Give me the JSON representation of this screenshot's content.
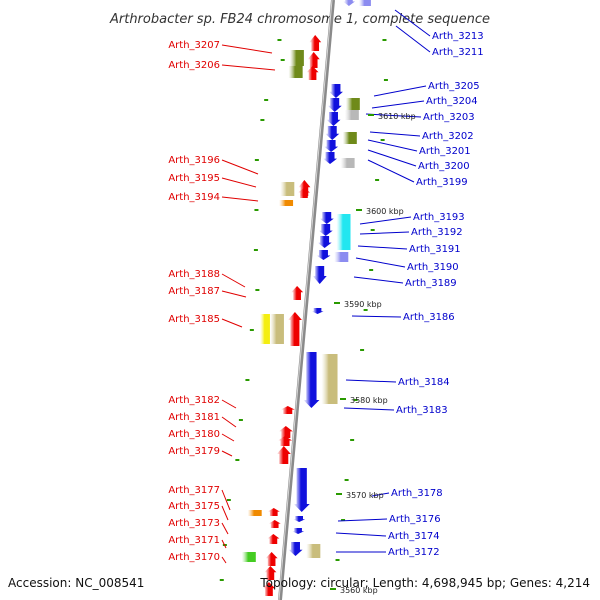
{
  "title": "Arthrobacter sp. FB24 chromosome 1, complete sequence",
  "footer": {
    "accession": "Accession: NC_008541",
    "topology": "Topology: circular; Length: 4,698,945 bp; Genes: 4,214"
  },
  "colors": {
    "backbone": "#8a8a8a",
    "left_label": "#e00000",
    "right_label": "#0000cc",
    "tick": "#2a9a00",
    "gene_red": "#ee0000",
    "gene_blue": "#1111dd",
    "gene_olive": "#6f8a1a",
    "gene_gray": "#b8b8b8",
    "gene_cyan": "#22e6f0",
    "gene_khaki": "#c9bd7c",
    "gene_yellow": "#f4ee10",
    "gene_orange": "#f08a00",
    "gene_lilac": "#8c8cf0",
    "gene_green": "#44cc22"
  },
  "scale_labels": [
    {
      "text": "3610 kbp"
    },
    {
      "text": "3600 kbp"
    },
    {
      "text": "3590 kbp"
    },
    {
      "text": "3580 kbp"
    },
    {
      "text": "3570 kbp"
    },
    {
      "text": "3560 kbp"
    }
  ],
  "left_labels": [
    "Arth_3207",
    "Arth_3206",
    "Arth_3196",
    "Arth_3195",
    "Arth_3194",
    "Arth_3188",
    "Arth_3187",
    "Arth_3185",
    "Arth_3182",
    "Arth_3181",
    "Arth_3180",
    "Arth_3179",
    "Arth_3177",
    "Arth_3175",
    "Arth_3173",
    "Arth_3171",
    "Arth_3170"
  ],
  "right_labels": [
    "Arth_3213",
    "Arth_3211",
    "Arth_3205",
    "Arth_3204",
    "Arth_3203",
    "Arth_3202",
    "Arth_3201",
    "Arth_3200",
    "Arth_3199",
    "Arth_3193",
    "Arth_3192",
    "Arth_3191",
    "Arth_3190",
    "Arth_3189",
    "Arth_3186",
    "Arth_3184",
    "Arth_3183",
    "Arth_3178",
    "Arth_3176",
    "Arth_3174",
    "Arth_3172"
  ]
}
